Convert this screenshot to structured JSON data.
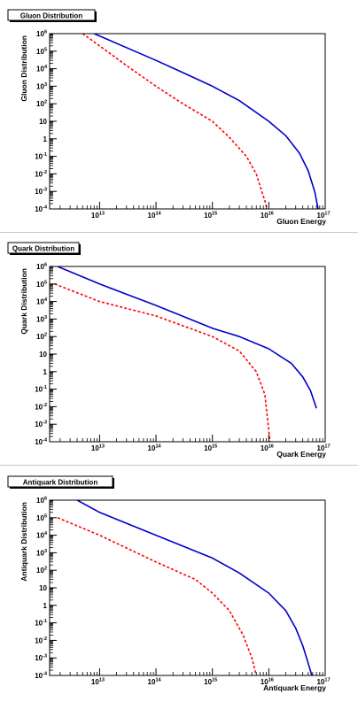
{
  "chart_data": [
    {
      "type": "line",
      "title": "Gluon Distribution",
      "xlabel": "Gluon Energy",
      "ylabel": "Gluon Distribution",
      "xscale": "log",
      "yscale": "log",
      "xlim": [
        1300000000000.0,
        1e+17
      ],
      "ylim": [
        0.0001,
        1000000.0
      ],
      "xticks": [
        10000000000000.0,
        100000000000000.0,
        1000000000000000.0,
        1e+16,
        1e+17
      ],
      "xtick_labels": [
        [
          "10",
          "13"
        ],
        [
          "10",
          "14"
        ],
        [
          "10",
          "15"
        ],
        [
          "10",
          "16"
        ],
        [
          "10",
          "17"
        ]
      ],
      "yticks": [
        0.0001,
        0.001,
        0.01,
        0.1,
        1,
        10,
        100.0,
        1000.0,
        10000.0,
        100000.0,
        1000000.0
      ],
      "ytick_labels": [
        [
          "10",
          "-4"
        ],
        [
          "10",
          "-3"
        ],
        [
          "10",
          "-2"
        ],
        [
          "10",
          "-1"
        ],
        [
          "1",
          ""
        ],
        [
          "10",
          ""
        ],
        [
          "10",
          "2"
        ],
        [
          "10",
          "3"
        ],
        [
          "10",
          "4"
        ],
        [
          "10",
          "5"
        ],
        [
          "10",
          "6"
        ]
      ],
      "series": [
        {
          "style": "solid",
          "color": "#0000cc",
          "x": [
            8000000000000.0,
            30000000000000.0,
            100000000000000.0,
            300000000000000.0,
            1000000000000000.0,
            3000000000000000.0,
            1e+16,
            2e+16,
            3.5e+16,
            5e+16,
            6.5e+16,
            7.5e+16
          ],
          "y": [
            1000000.0,
            160000.0,
            30000.0,
            6000.0,
            1000.0,
            150.0,
            10,
            1.5,
            0.15,
            0.015,
            0.001,
            0.0001
          ]
        },
        {
          "style": "dashed",
          "color": "#ff0000",
          "x": [
            5000000000000.0,
            10000000000000.0,
            30000000000000.0,
            100000000000000.0,
            300000000000000.0,
            1000000000000000.0,
            2000000000000000.0,
            4000000000000000.0,
            6000000000000000.0,
            7500000000000000.0,
            8500000000000000.0,
            9300000000000000.0
          ],
          "y": [
            1000000.0,
            200000.0,
            15000.0,
            1000.0,
            100.0,
            10,
            1.2,
            0.1,
            0.01,
            0.001,
            0.0003,
            0.0001
          ]
        }
      ]
    },
    {
      "type": "line",
      "title": "Quark Distribution",
      "xlabel": "Quark Energy",
      "ylabel": "Quark Distribution",
      "xscale": "log",
      "yscale": "log",
      "xlim": [
        1300000000000.0,
        1e+17
      ],
      "ylim": [
        0.0001,
        1000000.0
      ],
      "xticks": [
        10000000000000.0,
        100000000000000.0,
        1000000000000000.0,
        1e+16,
        1e+17
      ],
      "xtick_labels": [
        [
          "10",
          "13"
        ],
        [
          "10",
          "14"
        ],
        [
          "10",
          "15"
        ],
        [
          "10",
          "16"
        ],
        [
          "10",
          "17"
        ]
      ],
      "yticks": [
        0.0001,
        0.001,
        0.01,
        0.1,
        1,
        10,
        100.0,
        1000.0,
        10000.0,
        100000.0,
        1000000.0
      ],
      "ytick_labels": [
        [
          "10",
          "-4"
        ],
        [
          "10",
          "-3"
        ],
        [
          "10",
          "-2"
        ],
        [
          "10",
          "-1"
        ],
        [
          "1",
          ""
        ],
        [
          "10",
          ""
        ],
        [
          "10",
          "2"
        ],
        [
          "10",
          "3"
        ],
        [
          "10",
          "4"
        ],
        [
          "10",
          "5"
        ],
        [
          "10",
          "6"
        ]
      ],
      "series": [
        {
          "style": "solid",
          "color": "#0000cc",
          "x": [
            1800000000000.0,
            10000000000000.0,
            100000000000000.0,
            1000000000000000.0,
            3000000000000000.0,
            1e+16,
            2.5e+16,
            4e+16,
            5.5e+16,
            7e+16
          ],
          "y": [
            1000000.0,
            100000.0,
            6000.0,
            300.0,
            100.0,
            20,
            3,
            0.5,
            0.08,
            0.008
          ]
        },
        {
          "style": "dashed",
          "color": "#ff0000",
          "x": [
            1600000000000.0,
            10000000000000.0,
            100000000000000.0,
            1000000000000000.0,
            3000000000000000.0,
            6000000000000000.0,
            8500000000000000.0,
            1.05e+16
          ],
          "y": [
            100000.0,
            10000.0,
            1500.0,
            100.0,
            15,
            1.0,
            0.05,
            0.0001
          ]
        }
      ]
    },
    {
      "type": "line",
      "title": "Antiquark Distribution",
      "xlabel": "Antiquark Energy",
      "ylabel": "Antiquark Distribution",
      "xscale": "log",
      "yscale": "log",
      "xlim": [
        1300000000000.0,
        1e+17
      ],
      "ylim": [
        0.0001,
        1000000.0
      ],
      "xticks": [
        10000000000000.0,
        100000000000000.0,
        1000000000000000.0,
        1e+16,
        1e+17
      ],
      "xtick_labels": [
        [
          "10",
          "13"
        ],
        [
          "10",
          "14"
        ],
        [
          "10",
          "15"
        ],
        [
          "10",
          "16"
        ],
        [
          "10",
          "17"
        ]
      ],
      "yticks": [
        0.0001,
        0.001,
        0.01,
        0.1,
        1,
        10,
        100.0,
        1000.0,
        10000.0,
        100000.0,
        1000000.0
      ],
      "ytick_labels": [
        [
          "10",
          "-4"
        ],
        [
          "10",
          "-3"
        ],
        [
          "10",
          "-2"
        ],
        [
          "10",
          "-1"
        ],
        [
          "1",
          ""
        ],
        [
          "10",
          ""
        ],
        [
          "10",
          "2"
        ],
        [
          "10",
          "3"
        ],
        [
          "10",
          "4"
        ],
        [
          "10",
          "5"
        ],
        [
          "10",
          "6"
        ]
      ],
      "series": [
        {
          "style": "solid",
          "color": "#0000cc",
          "x": [
            4000000000000.0,
            10000000000000.0,
            100000000000000.0,
            1000000000000000.0,
            3000000000000000.0,
            1e+16,
            2e+16,
            3e+16,
            4e+16,
            5e+16,
            5.8e+16
          ],
          "y": [
            1000000.0,
            200000.0,
            10000.0,
            500.0,
            70,
            5,
            0.5,
            0.05,
            0.005,
            0.0005,
            0.0001
          ]
        },
        {
          "style": "dashed",
          "color": "#ff0000",
          "x": [
            1800000000000.0,
            10000000000000.0,
            100000000000000.0,
            500000000000000.0,
            1000000000000000.0,
            2000000000000000.0,
            3500000000000000.0,
            5000000000000000.0,
            6000000000000000.0
          ],
          "y": [
            100000.0,
            10000.0,
            300.0,
            30,
            5,
            0.5,
            0.02,
            0.001,
            0.0001
          ]
        }
      ]
    }
  ]
}
